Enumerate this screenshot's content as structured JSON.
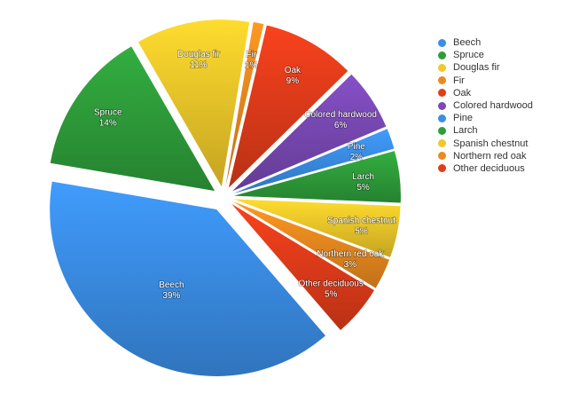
{
  "chart_data": {
    "type": "pie",
    "title": "",
    "exploded": true,
    "legend_position": "right",
    "categories": [
      "Beech",
      "Spruce",
      "Douglas fir",
      "Fir",
      "Oak",
      "Colored hardwood",
      "Pine",
      "Larch",
      "Spanish chestnut",
      "Northern red oak",
      "Other deciduous"
    ],
    "values": [
      39,
      14,
      11,
      1,
      9,
      6,
      2,
      5,
      5,
      3,
      5
    ],
    "labels": [
      "39%",
      "14%",
      "11%",
      "1%",
      "9%",
      "6%",
      "2%",
      "5%",
      "5%",
      "3%",
      "5%"
    ],
    "colors": [
      "#3a8ee6",
      "#2e9e3a",
      "#f0c82a",
      "#eb8a1e",
      "#e23c1a",
      "#7a49b5",
      "#3a8ee6",
      "#2e9e3a",
      "#f0c82a",
      "#eb8a1e",
      "#e23c1a"
    ],
    "draw_order": [
      "Douglas fir",
      "Fir",
      "Oak",
      "Colored hardwood",
      "Pine",
      "Larch",
      "Spanish chestnut",
      "Northern red oak",
      "Other deciduous",
      "Beech",
      "Spruce"
    ]
  },
  "legend": {
    "items": [
      {
        "label": "Beech",
        "color": "#3a8ee6"
      },
      {
        "label": "Spruce",
        "color": "#2e9e3a"
      },
      {
        "label": "Douglas fir",
        "color": "#f0c82a"
      },
      {
        "label": "Fir",
        "color": "#eb8a1e"
      },
      {
        "label": "Oak",
        "color": "#e23c1a"
      },
      {
        "label": "Colored hardwood",
        "color": "#7a49b5"
      },
      {
        "label": "Pine",
        "color": "#3a8ee6"
      },
      {
        "label": "Larch",
        "color": "#2e9e3a"
      },
      {
        "label": "Spanish chestnut",
        "color": "#f0c82a"
      },
      {
        "label": "Northern red oak",
        "color": "#eb8a1e"
      },
      {
        "label": "Other deciduous",
        "color": "#e23c1a"
      }
    ]
  }
}
